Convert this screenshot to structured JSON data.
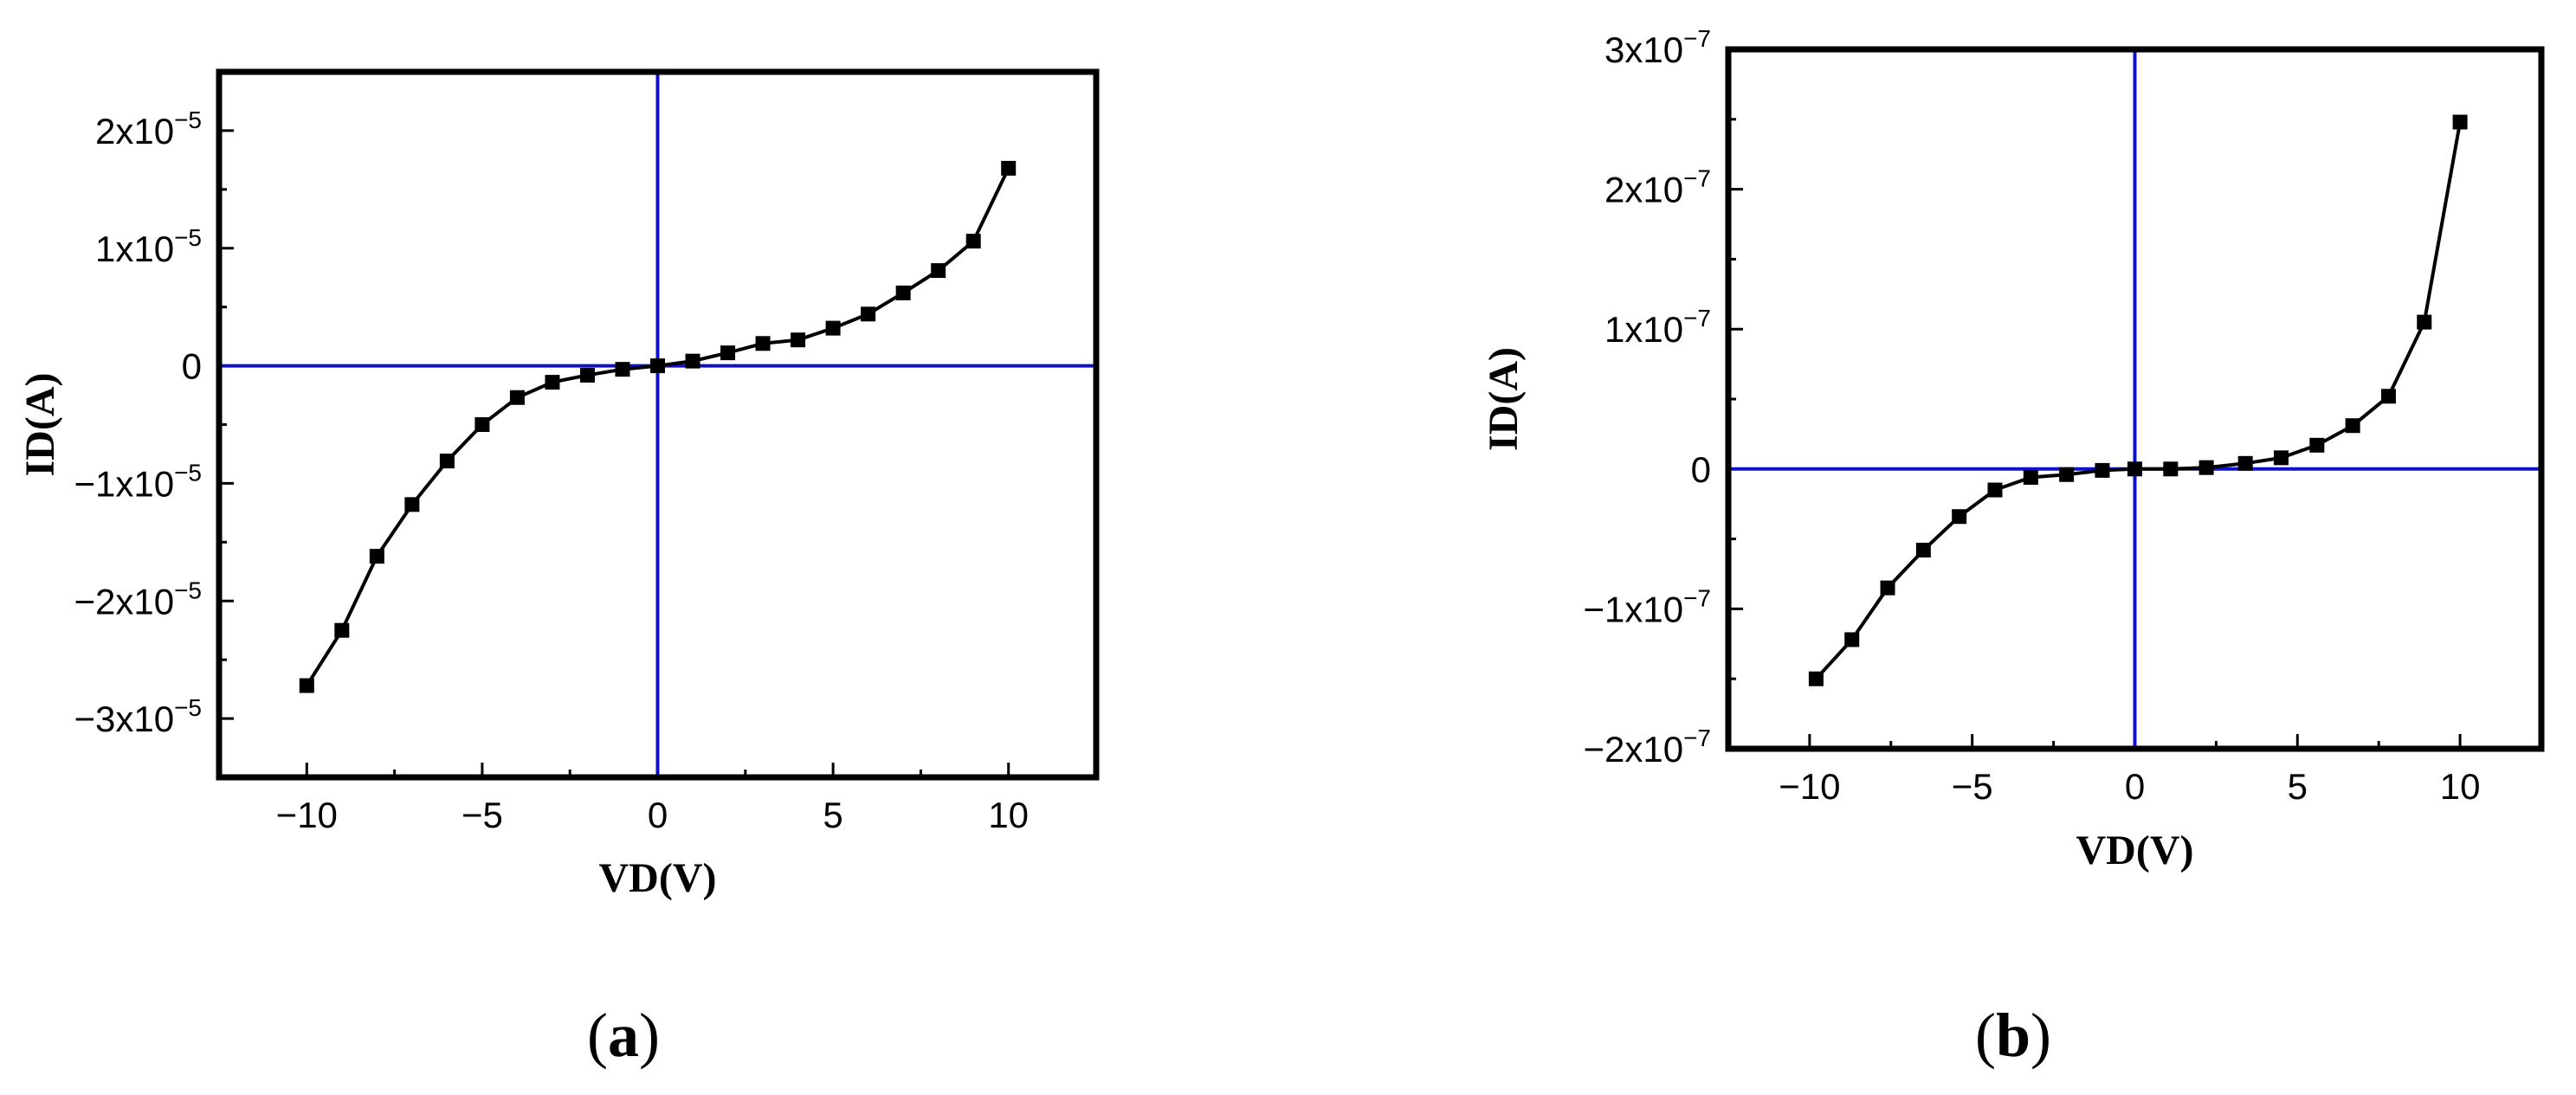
{
  "chart_data": [
    {
      "type": "line",
      "panel": "(a)",
      "panel_letter": "a",
      "xlabel": "VD(V)",
      "ylabel": "ID(A)",
      "xlim": [
        -12.5,
        12.5
      ],
      "ylim": [
        -3.5e-05,
        2.5e-05
      ],
      "x_ticks": [
        -10,
        -5,
        0,
        5,
        10
      ],
      "x_tick_labels": [
        "−10",
        "−5",
        "0",
        "5",
        "10"
      ],
      "y_ticks": [
        2e-05,
        1e-05,
        0,
        -1e-05,
        -2e-05,
        -3e-05
      ],
      "y_tick_labels": [
        {
          "mantissa": "2x10",
          "exp": "−5"
        },
        {
          "mantissa": "1x10",
          "exp": "−5"
        },
        {
          "mantissa": "0",
          "exp": ""
        },
        {
          "mantissa": "−1x10",
          "exp": "−5"
        },
        {
          "mantissa": "−2x10",
          "exp": "−5"
        },
        {
          "mantissa": "−3x10",
          "exp": "−5"
        }
      ],
      "reference_lines": {
        "x": 0,
        "y": 0,
        "color": "#1010c8"
      },
      "series": [
        {
          "color": "#000000",
          "marker": "square",
          "x": [
            -10,
            -9,
            -8,
            -7,
            -6,
            -5,
            -4,
            -3,
            -2,
            -1,
            0,
            1,
            2,
            3,
            4,
            5,
            6,
            7,
            8,
            9,
            10
          ],
          "y": [
            -2.72e-05,
            -2.25e-05,
            -1.62e-05,
            -1.18e-05,
            -8.1e-06,
            -5e-06,
            -2.7e-06,
            -1.4e-06,
            -8e-07,
            -3e-07,
            0,
            4e-07,
            1.1e-06,
            1.9e-06,
            2.2e-06,
            3.2e-06,
            4.4e-06,
            6.2e-06,
            8.1e-06,
            1.06e-05,
            1.68e-05
          ]
        }
      ]
    },
    {
      "type": "line",
      "panel": "(b)",
      "panel_letter": "b",
      "xlabel": "VD(V)",
      "ylabel": "ID(A)",
      "xlim": [
        -12.5,
        12.5
      ],
      "ylim": [
        -2e-07,
        3e-07
      ],
      "x_ticks": [
        -10,
        -5,
        0,
        5,
        10
      ],
      "x_tick_labels": [
        "−10",
        "−5",
        "0",
        "5",
        "10"
      ],
      "y_ticks": [
        3e-07,
        2e-07,
        1e-07,
        0,
        -1e-07,
        -2e-07
      ],
      "y_tick_labels": [
        {
          "mantissa": "3x10",
          "exp": "−7"
        },
        {
          "mantissa": "2x10",
          "exp": "−7"
        },
        {
          "mantissa": "1x10",
          "exp": "−7"
        },
        {
          "mantissa": "0",
          "exp": ""
        },
        {
          "mantissa": "−1x10",
          "exp": "−7"
        },
        {
          "mantissa": "−2x10",
          "exp": "−7"
        }
      ],
      "reference_lines": {
        "x": 0,
        "y": 0,
        "color": "#1010c8"
      },
      "series": [
        {
          "color": "#000000",
          "marker": "square",
          "x": [
            -9.8,
            -8.7,
            -7.6,
            -6.5,
            -5.4,
            -4.3,
            -3.2,
            -2.1,
            -1,
            0,
            1.1,
            2.2,
            3.4,
            4.5,
            5.6,
            6.7,
            7.8,
            8.9,
            10
          ],
          "y": [
            -1.5e-07,
            -1.22e-07,
            -8.5e-08,
            -5.8e-08,
            -3.4e-08,
            -1.5e-08,
            -6e-09,
            -4e-09,
            -1e-09,
            0,
            0,
            1e-09,
            4e-09,
            8e-09,
            1.7e-08,
            3.1e-08,
            5.2e-08,
            1.05e-07,
            2.48e-07
          ]
        }
      ]
    }
  ]
}
